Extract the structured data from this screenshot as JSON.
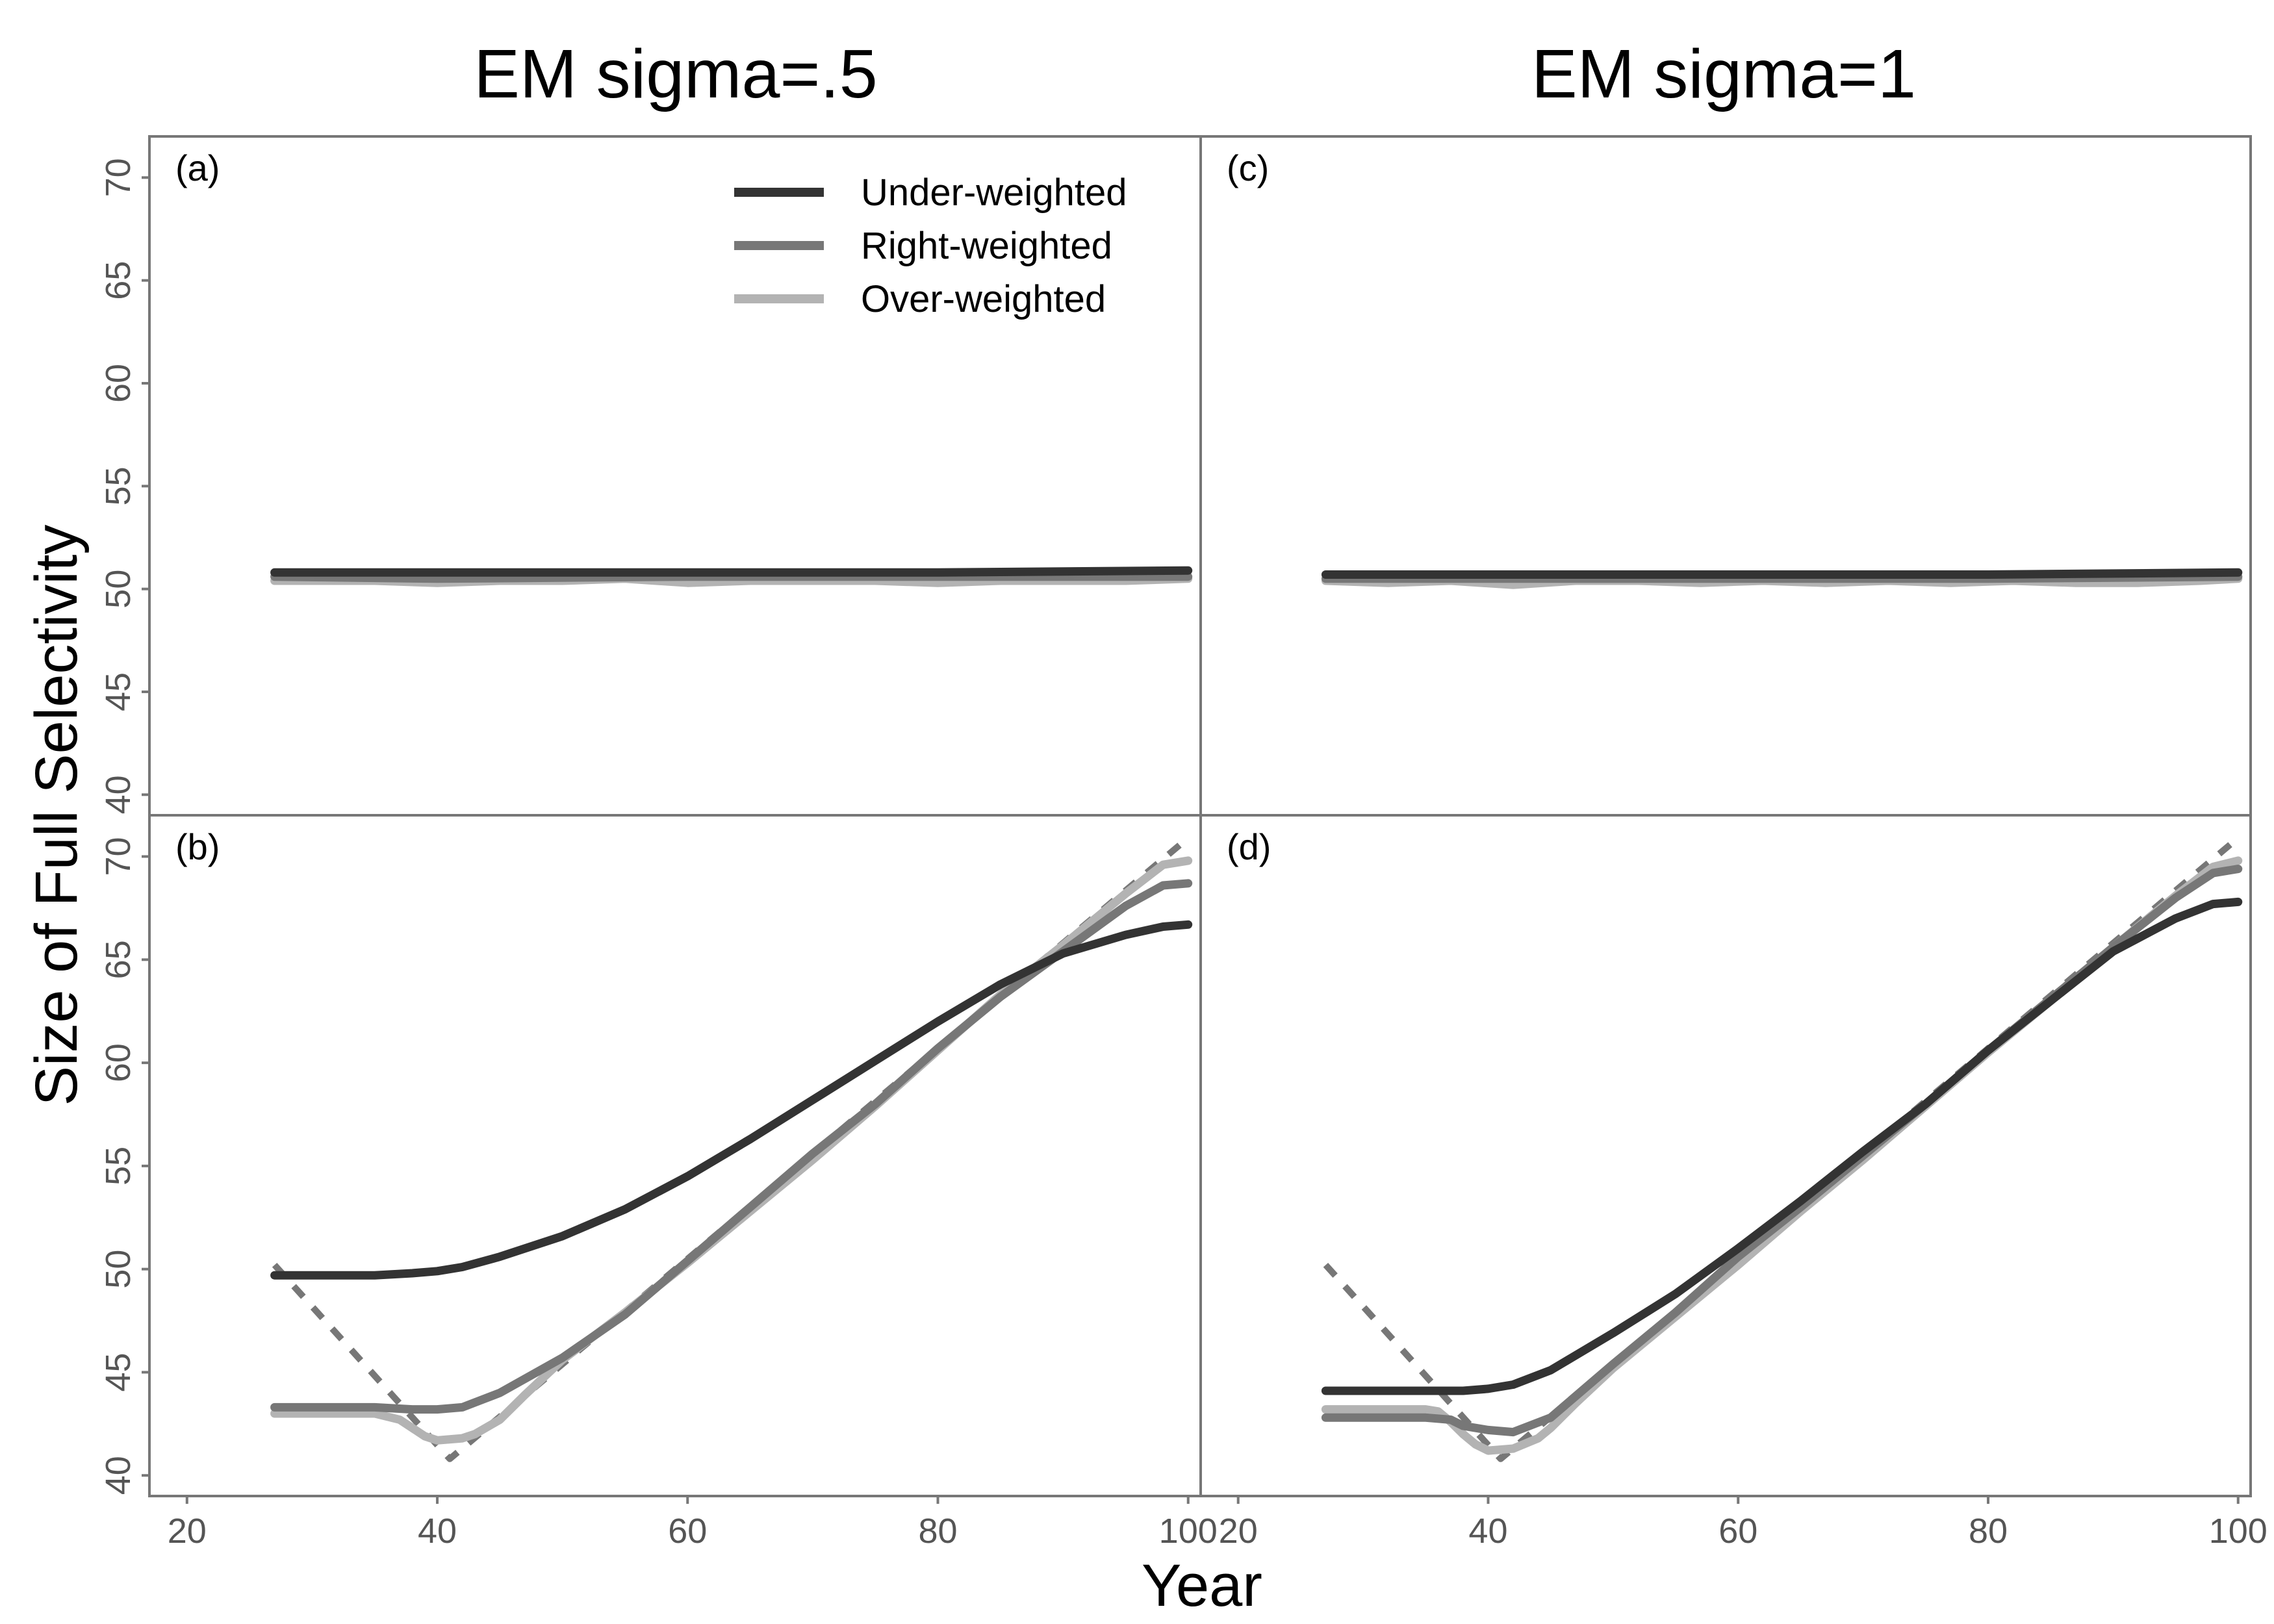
{
  "figure": {
    "col_titles": [
      "EM sigma=.5",
      "EM sigma=1"
    ],
    "xlabel": "Year",
    "ylabel": "Size of Full Selectivity"
  },
  "legend": {
    "placement": "top-right of panel (a)",
    "entries": [
      {
        "label": "Under-weighted",
        "color": "#333333"
      },
      {
        "label": "Right-weighted",
        "color": "#777777"
      },
      {
        "label": "Over-weighted",
        "color": "#b3b3b3"
      }
    ]
  },
  "colors": {
    "under": "#333333",
    "right": "#777777",
    "over": "#b3b3b3",
    "truth": "#777777",
    "frame": "#777777",
    "tick": "#555555"
  },
  "chart_data": [
    {
      "type": "line",
      "panel": "(a)",
      "column": "EM sigma=.5",
      "xlim": [
        17,
        101
      ],
      "ylim": [
        39,
        72
      ],
      "xticks": [
        20,
        40,
        60,
        80,
        100
      ],
      "yticks": [
        40,
        45,
        50,
        55,
        60,
        65,
        70
      ],
      "grid": false,
      "series": [
        {
          "name": "Under-weighted",
          "x": [
            27,
            40,
            60,
            80,
            100
          ],
          "y": [
            50.8,
            50.8,
            50.8,
            50.8,
            50.9
          ]
        },
        {
          "name": "Right-weighted",
          "x": [
            27,
            40,
            60,
            80,
            100
          ],
          "y": [
            50.6,
            50.5,
            50.6,
            50.6,
            50.6
          ]
        },
        {
          "name": "Over-weighted",
          "x": [
            27,
            35,
            40,
            45,
            50,
            55,
            60,
            65,
            70,
            75,
            80,
            85,
            90,
            95,
            100
          ],
          "y": [
            50.4,
            50.4,
            50.3,
            50.4,
            50.4,
            50.5,
            50.3,
            50.4,
            50.4,
            50.4,
            50.3,
            50.4,
            50.4,
            50.4,
            50.5
          ]
        },
        {
          "role": "truth",
          "dashed": true,
          "x": [
            27,
            100
          ],
          "y": [
            50.8,
            50.8
          ]
        }
      ]
    },
    {
      "type": "line",
      "panel": "(b)",
      "column": "EM sigma=.5",
      "xlim": [
        17,
        101
      ],
      "ylim": [
        39,
        72
      ],
      "xticks": [
        20,
        40,
        60,
        80,
        100
      ],
      "yticks": [
        40,
        45,
        50,
        55,
        60,
        65,
        70
      ],
      "grid": false,
      "series": [
        {
          "name": "Under-weighted",
          "x": [
            27,
            30,
            35,
            38,
            40,
            42,
            45,
            50,
            55,
            60,
            65,
            70,
            75,
            80,
            85,
            90,
            95,
            98,
            100
          ],
          "y": [
            49.7,
            49.7,
            49.7,
            49.8,
            49.9,
            50.1,
            50.6,
            51.6,
            52.9,
            54.5,
            56.3,
            58.2,
            60.1,
            62.0,
            63.8,
            65.3,
            66.2,
            66.6,
            66.7
          ]
        },
        {
          "name": "Right-weighted",
          "x": [
            27,
            30,
            35,
            38,
            40,
            42,
            45,
            50,
            55,
            60,
            65,
            70,
            75,
            80,
            85,
            90,
            95,
            98,
            100
          ],
          "y": [
            43.3,
            43.3,
            43.3,
            43.2,
            43.2,
            43.3,
            44.0,
            45.7,
            47.8,
            50.4,
            53.0,
            55.6,
            58.0,
            60.7,
            63.2,
            65.4,
            67.6,
            68.6,
            68.7
          ]
        },
        {
          "name": "Over-weighted",
          "x": [
            27,
            30,
            35,
            37,
            38,
            39,
            40,
            42,
            43,
            45,
            47,
            50,
            55,
            60,
            65,
            70,
            75,
            80,
            85,
            90,
            95,
            98,
            100
          ],
          "y": [
            43.0,
            43.0,
            43.0,
            42.7,
            42.3,
            41.9,
            41.7,
            41.8,
            42.0,
            42.7,
            43.9,
            45.6,
            47.9,
            50.3,
            52.8,
            55.3,
            57.9,
            60.6,
            63.3,
            65.7,
            68.2,
            69.6,
            69.8
          ]
        },
        {
          "role": "truth",
          "dashed": true,
          "x": [
            27,
            41,
            100
          ],
          "y": [
            50.2,
            40.8,
            70.9
          ]
        }
      ]
    },
    {
      "type": "line",
      "panel": "(c)",
      "column": "EM sigma=1",
      "xlim": [
        17,
        101
      ],
      "ylim": [
        39,
        72
      ],
      "xticks": [
        20,
        40,
        60,
        80,
        100
      ],
      "yticks": [
        40,
        45,
        50,
        55,
        60,
        65,
        70
      ],
      "grid": false,
      "series": [
        {
          "name": "Under-weighted",
          "x": [
            27,
            40,
            60,
            80,
            100
          ],
          "y": [
            50.7,
            50.7,
            50.7,
            50.7,
            50.8
          ]
        },
        {
          "name": "Right-weighted",
          "x": [
            27,
            40,
            60,
            80,
            100
          ],
          "y": [
            50.5,
            50.5,
            50.5,
            50.5,
            50.6
          ]
        },
        {
          "name": "Over-weighted",
          "x": [
            27,
            32,
            37,
            42,
            47,
            52,
            57,
            62,
            67,
            72,
            77,
            82,
            87,
            92,
            97,
            100
          ],
          "y": [
            50.4,
            50.3,
            50.4,
            50.2,
            50.4,
            50.4,
            50.3,
            50.4,
            50.3,
            50.4,
            50.3,
            50.4,
            50.3,
            50.3,
            50.4,
            50.5
          ]
        },
        {
          "role": "truth",
          "dashed": true,
          "x": [
            27,
            100
          ],
          "y": [
            50.7,
            50.7
          ]
        }
      ]
    },
    {
      "type": "line",
      "panel": "(d)",
      "column": "EM sigma=1",
      "xlim": [
        17,
        101
      ],
      "ylim": [
        39,
        72
      ],
      "xticks": [
        20,
        40,
        60,
        80,
        100
      ],
      "yticks": [
        40,
        45,
        50,
        55,
        60,
        65,
        70
      ],
      "grid": false,
      "series": [
        {
          "name": "Under-weighted",
          "x": [
            27,
            30,
            35,
            38,
            40,
            42,
            45,
            50,
            55,
            60,
            65,
            70,
            75,
            80,
            85,
            90,
            95,
            98,
            100
          ],
          "y": [
            44.1,
            44.1,
            44.1,
            44.1,
            44.2,
            44.4,
            45.1,
            46.9,
            48.8,
            51.0,
            53.3,
            55.7,
            58.0,
            60.6,
            63.0,
            65.4,
            67.0,
            67.7,
            67.8
          ]
        },
        {
          "name": "Right-weighted",
          "x": [
            27,
            30,
            35,
            37,
            38,
            40,
            42,
            45,
            50,
            55,
            60,
            65,
            70,
            75,
            80,
            85,
            90,
            95,
            98,
            100
          ],
          "y": [
            42.8,
            42.8,
            42.8,
            42.7,
            42.4,
            42.2,
            42.1,
            42.8,
            45.4,
            47.9,
            50.6,
            53.0,
            55.5,
            58.0,
            60.6,
            63.1,
            65.6,
            68.0,
            69.2,
            69.4
          ]
        },
        {
          "name": "Over-weighted",
          "x": [
            27,
            30,
            35,
            36,
            37,
            38,
            39,
            40,
            42,
            44,
            45,
            47,
            50,
            55,
            60,
            65,
            70,
            75,
            80,
            85,
            90,
            95,
            98,
            100
          ],
          "y": [
            43.2,
            43.2,
            43.2,
            43.1,
            42.6,
            42.0,
            41.5,
            41.2,
            41.3,
            41.8,
            42.3,
            43.5,
            45.2,
            47.7,
            50.2,
            52.8,
            55.3,
            57.9,
            60.5,
            63.0,
            65.6,
            68.1,
            69.5,
            69.8
          ]
        },
        {
          "role": "truth",
          "dashed": true,
          "x": [
            27,
            41,
            100
          ],
          "y": [
            50.2,
            40.8,
            70.9
          ]
        }
      ]
    }
  ]
}
